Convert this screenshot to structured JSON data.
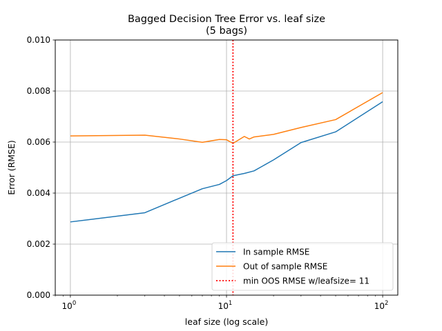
{
  "chart_data": {
    "type": "line",
    "title": "Bagged Decision Tree Error vs. leaf size",
    "subtitle": "(5 bags)",
    "xlabel": "leaf size (log scale)",
    "ylabel": "Error (RMSE)",
    "xscale": "log",
    "xlim": [
      0.8,
      125
    ],
    "ylim": [
      0,
      0.01
    ],
    "x_ticks": [
      {
        "value": 1,
        "base": "10",
        "exp": "0"
      },
      {
        "value": 10,
        "base": "10",
        "exp": "1"
      },
      {
        "value": 100,
        "base": "10",
        "exp": "2"
      }
    ],
    "y_ticks": [
      {
        "value": 0,
        "label": "0.000"
      },
      {
        "value": 0.002,
        "label": "0.002"
      },
      {
        "value": 0.004,
        "label": "0.004"
      },
      {
        "value": 0.006,
        "label": "0.006"
      },
      {
        "value": 0.008,
        "label": "0.008"
      },
      {
        "value": 0.01,
        "label": "0.010"
      }
    ],
    "grid": true,
    "legend_position": "lower-right",
    "series": [
      {
        "name": "In sample RMSE",
        "color": "#1f77b4",
        "style": "solid",
        "x": [
          1,
          3,
          5,
          7,
          9,
          10,
          11,
          13,
          15,
          20,
          30,
          50,
          100
        ],
        "y": [
          0.00287,
          0.00323,
          0.0038,
          0.00417,
          0.00434,
          0.00449,
          0.00468,
          0.00477,
          0.00487,
          0.0053,
          0.00598,
          0.0064,
          0.00758
        ]
      },
      {
        "name": "Out of sample RMSE",
        "color": "#ff7f0e",
        "style": "solid",
        "x": [
          1,
          3,
          5,
          7,
          9,
          10,
          11,
          13,
          14,
          15,
          20,
          30,
          50,
          100
        ],
        "y": [
          0.00624,
          0.00627,
          0.00612,
          0.00599,
          0.0061,
          0.00609,
          0.00595,
          0.00622,
          0.00612,
          0.0062,
          0.0063,
          0.00657,
          0.00688,
          0.00794
        ]
      }
    ],
    "vline": {
      "name": "min OOS RMSE w/leafsize= 11",
      "x": 11,
      "color": "#ff0000",
      "style": "dotted"
    }
  }
}
